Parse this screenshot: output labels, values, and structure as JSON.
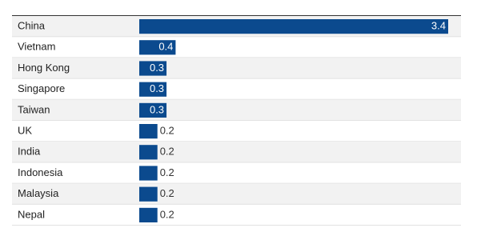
{
  "chart_data": {
    "type": "bar",
    "orientation": "horizontal",
    "categories": [
      "China",
      "Vietnam",
      "Hong Kong",
      "Singapore",
      "Taiwan",
      "UK",
      "India",
      "Indonesia",
      "Malaysia",
      "Nepal"
    ],
    "values": [
      3.4,
      0.4,
      0.3,
      0.3,
      0.3,
      0.2,
      0.2,
      0.2,
      0.2,
      0.2
    ],
    "color": "#0b4a8e"
  }
}
